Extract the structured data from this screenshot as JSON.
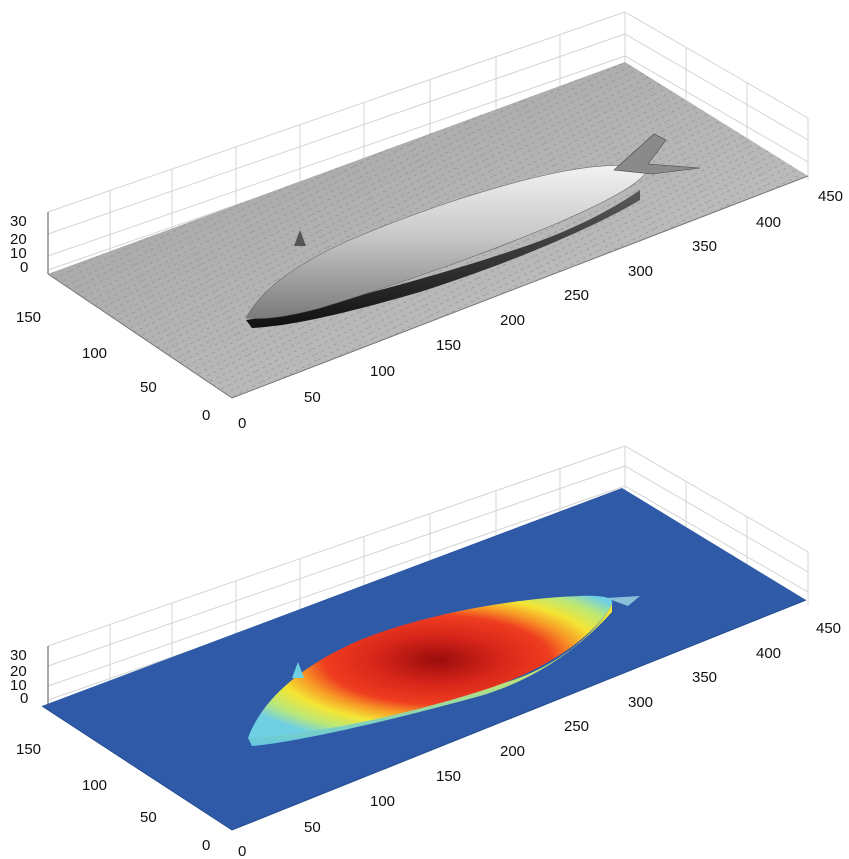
{
  "chart_data": [
    {
      "type": "surface",
      "colormap": "gray",
      "xlim": [
        0,
        450
      ],
      "ylim": [
        0,
        175
      ],
      "zlim": [
        -5,
        30
      ],
      "x_ticks": [
        "0",
        "50",
        "100",
        "150",
        "200",
        "250",
        "300",
        "350",
        "400",
        "450"
      ],
      "y_ticks": [
        "0",
        "50",
        "100",
        "150"
      ],
      "z_ticks": [
        "0",
        "10",
        "20",
        "30"
      ],
      "grid": true,
      "object": {
        "x_range": [
          60,
          430
        ],
        "y_center": 110,
        "max_height": 28
      }
    },
    {
      "type": "surface",
      "colormap": "jet",
      "xlim": [
        0,
        450
      ],
      "ylim": [
        0,
        175
      ],
      "zlim": [
        -5,
        30
      ],
      "x_ticks": [
        "0",
        "50",
        "100",
        "150",
        "200",
        "250",
        "300",
        "350",
        "400",
        "450"
      ],
      "y_ticks": [
        "0",
        "50",
        "100",
        "150"
      ],
      "z_ticks": [
        "0",
        "10",
        "20",
        "30"
      ],
      "grid": true,
      "object": {
        "x_range": [
          60,
          400
        ],
        "y_center": 110,
        "max_height": 30
      }
    }
  ],
  "colors": {
    "background": "#ffffff",
    "gray_floor": "#a7a7a7",
    "gray_body": "#d9d9d9",
    "gray_shadow": "#2a2a2a",
    "jet_floor": "#2f5aa8",
    "jet_low": "#7fd6e6",
    "jet_mid": "#f5e832",
    "jet_high": "#e53c1d",
    "jet_peak": "#b3100f",
    "grid": "#d0d0d0",
    "axis": "#555555"
  }
}
